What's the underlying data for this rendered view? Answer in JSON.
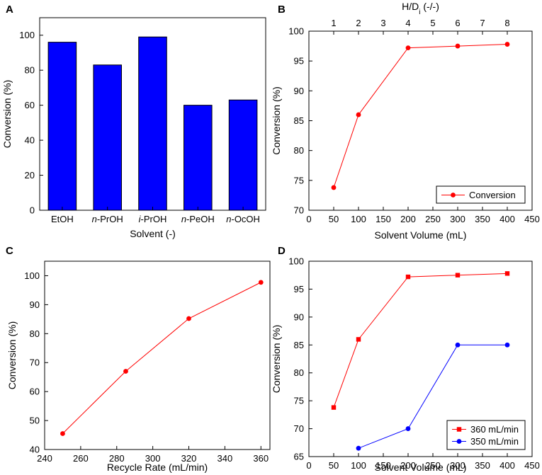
{
  "chart_data": [
    {
      "panel": "A",
      "type": "bar",
      "categories": [
        {
          "prefix": "",
          "suffix": "EtOH"
        },
        {
          "prefix": "n",
          "suffix": "-PrOH"
        },
        {
          "prefix": "i",
          "suffix": "-PrOH"
        },
        {
          "prefix": "n",
          "suffix": "-PeOH"
        },
        {
          "prefix": "n",
          "suffix": "-OcOH"
        }
      ],
      "values": [
        96,
        83,
        99,
        60,
        63
      ],
      "xlabel": "Solvent (-)",
      "ylabel": "Conversion (%)",
      "ylim": [
        0,
        110
      ],
      "yticks": [
        0,
        20,
        40,
        60,
        80,
        100
      ],
      "bar_color": "#0000ff"
    },
    {
      "panel": "B",
      "type": "line",
      "xlabel": "Solvent Volume (mL)",
      "ylabel": "Conversion (%)",
      "xlim": [
        0,
        450
      ],
      "ylim": [
        70,
        100
      ],
      "xticks": [
        0,
        50,
        100,
        150,
        200,
        250,
        300,
        350,
        400,
        450
      ],
      "yticks": [
        70,
        75,
        80,
        85,
        90,
        95,
        100
      ],
      "top_axis": {
        "label_base": "H/D",
        "label_sub": "i",
        "label_rest": " (-/-)",
        "ticks": [
          {
            "x": 50,
            "label": "1"
          },
          {
            "x": 100,
            "label": "2"
          },
          {
            "x": 150,
            "label": "3"
          },
          {
            "x": 200,
            "label": "4"
          },
          {
            "x": 250,
            "label": "5"
          },
          {
            "x": 300,
            "label": "6"
          },
          {
            "x": 350,
            "label": "7"
          },
          {
            "x": 400,
            "label": "8"
          }
        ]
      },
      "legend_position": "bottom-right",
      "series": [
        {
          "name": "Conversion",
          "color": "#ff0000",
          "marker": "circle",
          "x": [
            50,
            100,
            200,
            300,
            400
          ],
          "y": [
            73.8,
            86,
            97.2,
            97.5,
            97.8
          ]
        }
      ]
    },
    {
      "panel": "C",
      "type": "line",
      "xlabel": "Recycle Rate (mL/min)",
      "ylabel": "Conversion (%)",
      "xlim": [
        240,
        365
      ],
      "ylim": [
        40,
        105
      ],
      "xticks": [
        240,
        260,
        280,
        300,
        320,
        340,
        360
      ],
      "yticks": [
        40,
        50,
        60,
        70,
        80,
        90,
        100
      ],
      "series": [
        {
          "name": "Conversion",
          "color": "#ff0000",
          "marker": "circle",
          "x": [
            250,
            285,
            320,
            360
          ],
          "y": [
            45.5,
            67,
            85.2,
            97.7
          ]
        }
      ]
    },
    {
      "panel": "D",
      "type": "line",
      "xlabel": "Solvent Volume (mL)",
      "ylabel": "Conversion (%)",
      "xlim": [
        0,
        450
      ],
      "ylim": [
        65,
        100
      ],
      "xticks": [
        0,
        50,
        100,
        150,
        200,
        250,
        300,
        350,
        400,
        450
      ],
      "yticks": [
        65,
        70,
        75,
        80,
        85,
        90,
        95,
        100
      ],
      "legend_position": "bottom-right",
      "series": [
        {
          "name": "360 mL/min",
          "color": "#ff0000",
          "marker": "square",
          "x": [
            50,
            100,
            200,
            300,
            400
          ],
          "y": [
            73.8,
            86,
            97.2,
            97.5,
            97.8
          ]
        },
        {
          "name": "350 mL/min",
          "color": "#0000ff",
          "marker": "circle",
          "x": [
            100,
            200,
            300,
            400
          ],
          "y": [
            66.5,
            70,
            85,
            85
          ]
        }
      ]
    }
  ]
}
